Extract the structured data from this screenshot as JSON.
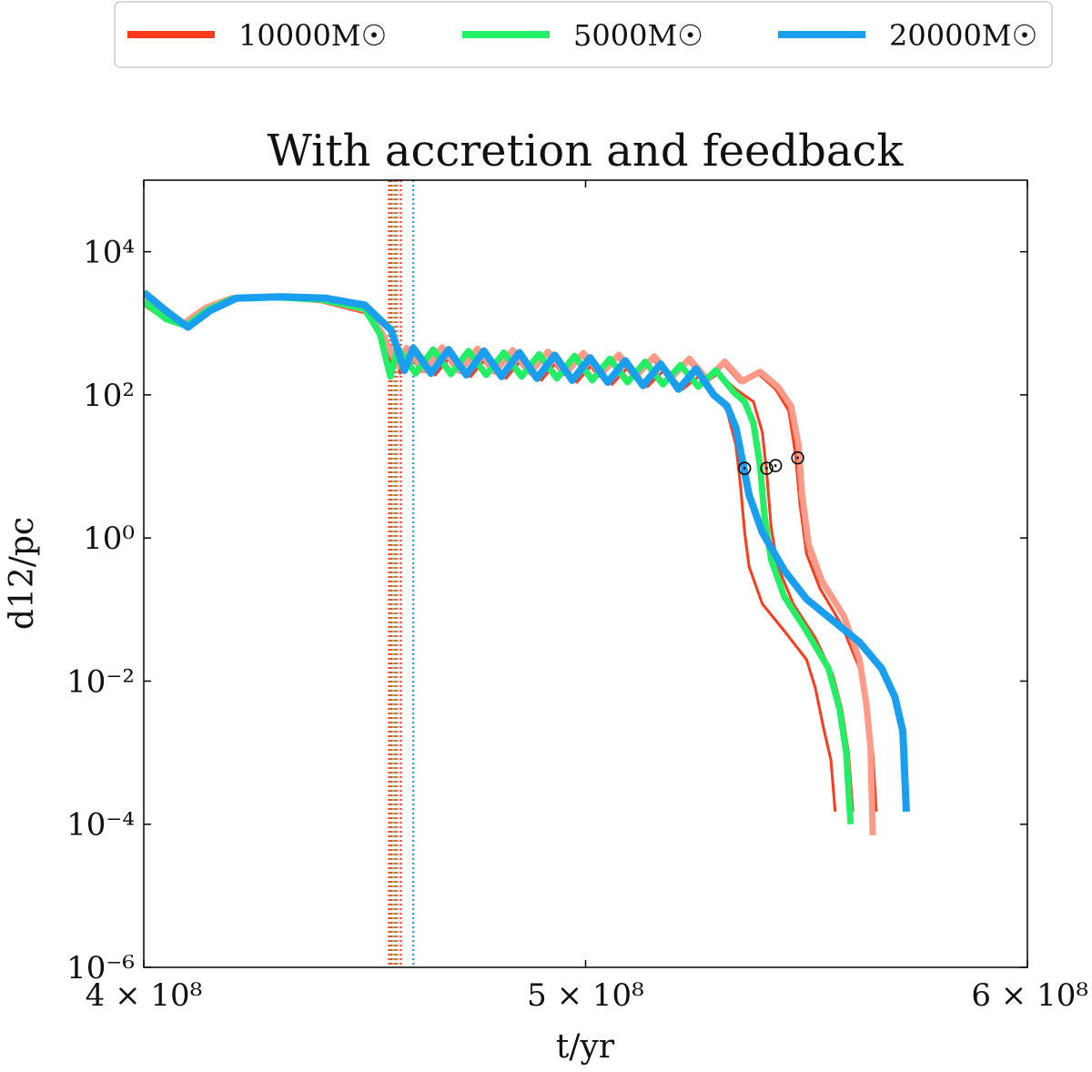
{
  "chart_data": {
    "type": "line",
    "title": "With accretion and feedback",
    "xlabel": "t/yr",
    "ylabel": "d12/pc",
    "xscale": "linear",
    "yscale": "log",
    "xlim": [
      400000000,
      600000000
    ],
    "ylim": [
      1e-06,
      100000
    ],
    "xticks": [
      {
        "value": 400000000,
        "label": "4 × 10⁸"
      },
      {
        "value": 500000000,
        "label": "5 × 10⁸"
      },
      {
        "value": 600000000,
        "label": "6 × 10⁸"
      }
    ],
    "yticks": [
      {
        "value": 1e-06,
        "label": "10⁻⁶"
      },
      {
        "value": 0.0001,
        "label": "10⁻⁴"
      },
      {
        "value": 0.01,
        "label": "10⁻²"
      },
      {
        "value": 1,
        "label": "10⁰"
      },
      {
        "value": 100,
        "label": "10²"
      },
      {
        "value": 10000,
        "label": "10⁴"
      }
    ],
    "legend": {
      "placement": "top-center-outside",
      "entries": [
        {
          "label": "10000M☉",
          "color": "#ff3a1a"
        },
        {
          "label": "5000M☉",
          "color": "#22ee66"
        },
        {
          "label": "20000M☉",
          "color": "#1a9ef0"
        }
      ]
    },
    "vlines": [
      {
        "t": 455500000,
        "color": "#ff3a1a"
      },
      {
        "t": 456000000,
        "color": "#ff3a1a"
      },
      {
        "t": 456500000,
        "color": "#22ee66"
      },
      {
        "t": 457000000,
        "color": "#ff3a1a"
      },
      {
        "t": 457500000,
        "color": "#ff8a70"
      },
      {
        "t": 458200000,
        "color": "#ff3a1a"
      },
      {
        "t": 461000000,
        "color": "#1a9ef0"
      }
    ],
    "markers": [
      {
        "t": 536000000,
        "d": 10,
        "symbol": "⊙"
      },
      {
        "t": 541000000,
        "d": 10,
        "symbol": "⊙"
      },
      {
        "t": 543000000,
        "d": 11,
        "symbol": "⊙"
      },
      {
        "t": 548000000,
        "d": 14,
        "symbol": "⊙"
      }
    ],
    "series": [
      {
        "name": "10000M☉",
        "color": "#ff3a1a",
        "width": 3,
        "points": [
          [
            400000000,
            1800
          ],
          [
            405000000,
            1100
          ],
          [
            409000000,
            950
          ],
          [
            414000000,
            1500
          ],
          [
            420000000,
            2100
          ],
          [
            430000000,
            2200
          ],
          [
            440000000,
            2000
          ],
          [
            450000000,
            1400
          ],
          [
            454000000,
            600
          ],
          [
            456000000,
            220
          ],
          [
            457000000,
            400
          ],
          [
            458000000,
            200
          ],
          [
            462000000,
            420
          ],
          [
            466000000,
            190
          ],
          [
            470000000,
            380
          ],
          [
            474000000,
            180
          ],
          [
            478000000,
            360
          ],
          [
            482000000,
            170
          ],
          [
            486000000,
            340
          ],
          [
            490000000,
            160
          ],
          [
            494000000,
            320
          ],
          [
            498000000,
            150
          ],
          [
            502000000,
            290
          ],
          [
            506000000,
            140
          ],
          [
            510000000,
            260
          ],
          [
            514000000,
            130
          ],
          [
            518000000,
            230
          ],
          [
            522000000,
            120
          ],
          [
            526000000,
            190
          ],
          [
            530000000,
            90
          ],
          [
            532000000,
            60
          ],
          [
            534000000,
            20
          ],
          [
            535000000,
            6
          ],
          [
            536000000,
            1.2
          ],
          [
            537000000,
            0.4
          ],
          [
            540000000,
            0.12
          ],
          [
            545000000,
            0.05
          ],
          [
            550000000,
            0.02
          ],
          [
            552000000,
            0.008
          ],
          [
            554000000,
            0.002
          ],
          [
            555500000,
            0.0008
          ],
          [
            556500000,
            0.00015
          ]
        ]
      },
      {
        "name": "",
        "color": "#ff3a1a",
        "width": 3,
        "points": [
          [
            400000000,
            1900
          ],
          [
            405000000,
            1150
          ],
          [
            409000000,
            960
          ],
          [
            414000000,
            1550
          ],
          [
            420000000,
            2150
          ],
          [
            430000000,
            2250
          ],
          [
            440000000,
            2050
          ],
          [
            450000000,
            1450
          ],
          [
            454000000,
            650
          ],
          [
            456500000,
            230
          ],
          [
            458000000,
            420
          ],
          [
            462000000,
            200
          ],
          [
            466000000,
            430
          ],
          [
            470000000,
            200
          ],
          [
            474000000,
            400
          ],
          [
            478000000,
            190
          ],
          [
            482000000,
            380
          ],
          [
            486000000,
            185
          ],
          [
            490000000,
            360
          ],
          [
            494000000,
            175
          ],
          [
            498000000,
            340
          ],
          [
            502000000,
            165
          ],
          [
            506000000,
            310
          ],
          [
            510000000,
            155
          ],
          [
            514000000,
            280
          ],
          [
            518000000,
            145
          ],
          [
            522000000,
            250
          ],
          [
            526000000,
            130
          ],
          [
            530000000,
            200
          ],
          [
            534000000,
            120
          ],
          [
            538000000,
            80
          ],
          [
            540000000,
            30
          ],
          [
            541000000,
            8
          ],
          [
            542000000,
            1.4
          ],
          [
            543500000,
            0.4
          ],
          [
            547000000,
            0.12
          ],
          [
            552000000,
            0.04
          ],
          [
            556000000,
            0.012
          ],
          [
            558000000,
            0.004
          ],
          [
            559500000,
            0.001
          ],
          [
            560500000,
            0.00015
          ]
        ]
      },
      {
        "name": "",
        "color": "#ff3a1a",
        "width": 3,
        "points": [
          [
            400000000,
            2000
          ],
          [
            405000000,
            1200
          ],
          [
            409000000,
            980
          ],
          [
            414000000,
            1600
          ],
          [
            420000000,
            2200
          ],
          [
            430000000,
            2300
          ],
          [
            440000000,
            2100
          ],
          [
            450000000,
            1500
          ],
          [
            454000000,
            700
          ],
          [
            457000000,
            240
          ],
          [
            459000000,
            440
          ],
          [
            463000000,
            210
          ],
          [
            467000000,
            450
          ],
          [
            471000000,
            210
          ],
          [
            475000000,
            430
          ],
          [
            479000000,
            205
          ],
          [
            483000000,
            410
          ],
          [
            487000000,
            200
          ],
          [
            491000000,
            390
          ],
          [
            495000000,
            190
          ],
          [
            499000000,
            370
          ],
          [
            503000000,
            180
          ],
          [
            507000000,
            350
          ],
          [
            511000000,
            175
          ],
          [
            515000000,
            330
          ],
          [
            519000000,
            165
          ],
          [
            523000000,
            310
          ],
          [
            527000000,
            160
          ],
          [
            531000000,
            280
          ],
          [
            535000000,
            150
          ],
          [
            539000000,
            200
          ],
          [
            543000000,
            120
          ],
          [
            546000000,
            60
          ],
          [
            547500000,
            15
          ],
          [
            548500000,
            3
          ],
          [
            550000000,
            0.6
          ],
          [
            553000000,
            0.2
          ],
          [
            558000000,
            0.06
          ],
          [
            562000000,
            0.015
          ],
          [
            564000000,
            0.004
          ],
          [
            565000000,
            0.001
          ],
          [
            565800000,
            0.00015
          ]
        ]
      },
      {
        "name": "",
        "color": "#ff9a88",
        "width": 7,
        "points": [
          [
            400000000,
            2100
          ],
          [
            405000000,
            1250
          ],
          [
            409000000,
            990
          ],
          [
            414000000,
            1650
          ],
          [
            420000000,
            2250
          ],
          [
            430000000,
            2350
          ],
          [
            440000000,
            2150
          ],
          [
            450000000,
            1550
          ],
          [
            454000000,
            720
          ],
          [
            457500000,
            250
          ],
          [
            459500000,
            450
          ],
          [
            463500000,
            220
          ],
          [
            467500000,
            460
          ],
          [
            471500000,
            215
          ],
          [
            475500000,
            440
          ],
          [
            479500000,
            210
          ],
          [
            483500000,
            420
          ],
          [
            487500000,
            205
          ],
          [
            491500000,
            400
          ],
          [
            495500000,
            200
          ],
          [
            499500000,
            385
          ],
          [
            503500000,
            195
          ],
          [
            507500000,
            365
          ],
          [
            511500000,
            185
          ],
          [
            515500000,
            345
          ],
          [
            519500000,
            175
          ],
          [
            523500000,
            320
          ],
          [
            527500000,
            165
          ],
          [
            531500000,
            290
          ],
          [
            535500000,
            155
          ],
          [
            539500000,
            210
          ],
          [
            543500000,
            130
          ],
          [
            546500000,
            70
          ],
          [
            548200000,
            20
          ],
          [
            549000000,
            4
          ],
          [
            550500000,
            0.8
          ],
          [
            553500000,
            0.25
          ],
          [
            558500000,
            0.08
          ],
          [
            562000000,
            0.02
          ],
          [
            563500000,
            0.005
          ],
          [
            564500000,
            0.0012
          ],
          [
            565000000,
            7e-05
          ]
        ]
      },
      {
        "name": "5000M☉",
        "color": "#22ee66",
        "width": 7,
        "points": [
          [
            400000000,
            2000
          ],
          [
            405000000,
            1150
          ],
          [
            409500000,
            920
          ],
          [
            414500000,
            1550
          ],
          [
            420000000,
            2200
          ],
          [
            430000000,
            2300
          ],
          [
            440000000,
            2150
          ],
          [
            450000000,
            1600
          ],
          [
            453500000,
            700
          ],
          [
            455800000,
            180
          ],
          [
            457500000,
            450
          ],
          [
            461500000,
            200
          ],
          [
            465500000,
            430
          ],
          [
            469500000,
            195
          ],
          [
            473500000,
            410
          ],
          [
            477500000,
            190
          ],
          [
            481500000,
            390
          ],
          [
            485500000,
            180
          ],
          [
            489500000,
            370
          ],
          [
            493500000,
            170
          ],
          [
            497500000,
            350
          ],
          [
            501500000,
            160
          ],
          [
            505500000,
            320
          ],
          [
            509500000,
            150
          ],
          [
            513500000,
            290
          ],
          [
            517500000,
            140
          ],
          [
            521500000,
            260
          ],
          [
            525500000,
            130
          ],
          [
            529500000,
            220
          ],
          [
            533500000,
            110
          ],
          [
            536000000,
            80
          ],
          [
            538000000,
            40
          ],
          [
            539500000,
            10
          ],
          [
            540500000,
            2
          ],
          [
            542000000,
            0.5
          ],
          [
            545000000,
            0.15
          ],
          [
            550000000,
            0.05
          ],
          [
            555000000,
            0.015
          ],
          [
            557500000,
            0.004
          ],
          [
            559000000,
            0.001
          ],
          [
            560000000,
            0.0001
          ]
        ]
      },
      {
        "name": "20000M☉",
        "color": "#1a9ef0",
        "width": 8,
        "points": [
          [
            400000000,
            2700
          ],
          [
            405000000,
            1500
          ],
          [
            410000000,
            880
          ],
          [
            415000000,
            1500
          ],
          [
            421000000,
            2250
          ],
          [
            431000000,
            2350
          ],
          [
            441000000,
            2250
          ],
          [
            450000000,
            1800
          ],
          [
            456000000,
            800
          ],
          [
            459000000,
            220
          ],
          [
            461000000,
            450
          ],
          [
            465000000,
            200
          ],
          [
            469000000,
            430
          ],
          [
            473000000,
            190
          ],
          [
            477000000,
            410
          ],
          [
            481000000,
            180
          ],
          [
            485000000,
            390
          ],
          [
            489000000,
            170
          ],
          [
            493000000,
            360
          ],
          [
            497000000,
            160
          ],
          [
            501000000,
            330
          ],
          [
            505000000,
            150
          ],
          [
            509000000,
            300
          ],
          [
            513000000,
            135
          ],
          [
            517000000,
            270
          ],
          [
            521000000,
            120
          ],
          [
            525000000,
            230
          ],
          [
            529000000,
            100
          ],
          [
            532000000,
            70
          ],
          [
            534000000,
            35
          ],
          [
            535500000,
            12
          ],
          [
            537000000,
            4
          ],
          [
            540000000,
            1.2
          ],
          [
            545000000,
            0.35
          ],
          [
            550000000,
            0.14
          ],
          [
            556000000,
            0.07
          ],
          [
            562000000,
            0.035
          ],
          [
            567000000,
            0.015
          ],
          [
            570000000,
            0.006
          ],
          [
            571800000,
            0.002
          ],
          [
            572600000,
            0.00015
          ]
        ]
      }
    ]
  }
}
